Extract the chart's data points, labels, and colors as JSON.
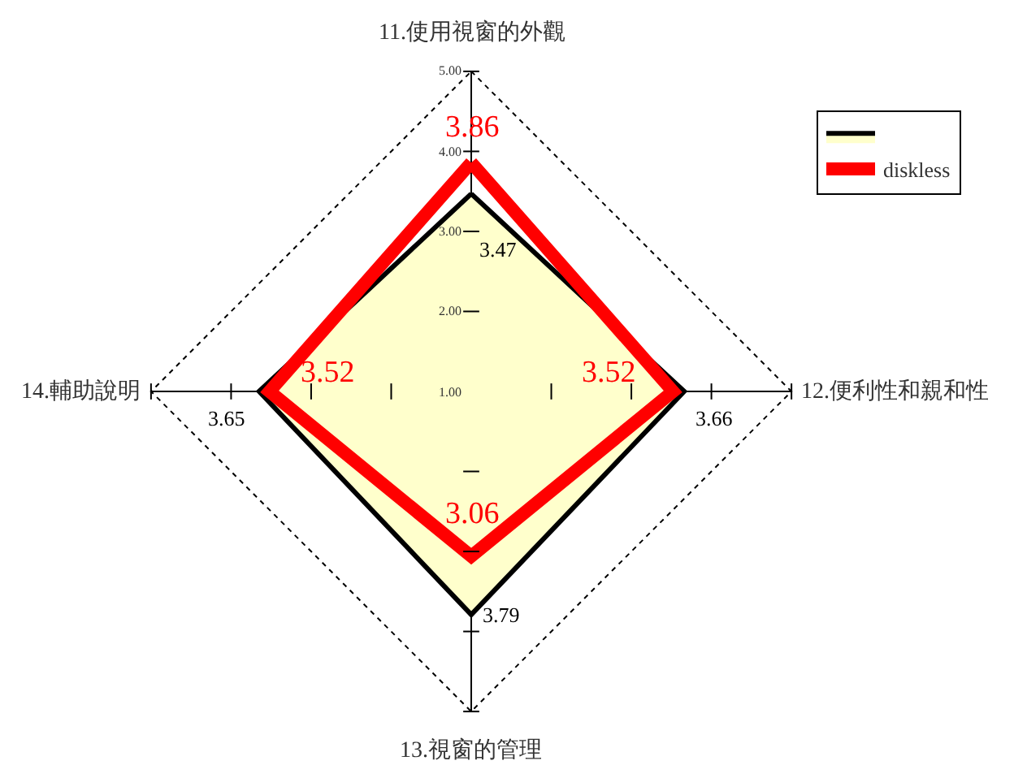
{
  "chart_data": {
    "type": "radar",
    "categories": [
      "11.使用視窗的外觀",
      "12.便利性和親和性",
      "13.視窗的管理",
      "14.輔助說明"
    ],
    "series": [
      {
        "color": "#000000",
        "values": [
          3.47,
          3.66,
          3.79,
          3.65
        ]
      },
      {
        "name": "diskless",
        "color": "#ff0000",
        "values": [
          3.86,
          3.52,
          3.06,
          3.52
        ]
      }
    ],
    "ylim": [
      1,
      5
    ],
    "yticks": [
      {
        "value": 1,
        "label": "1.00"
      },
      {
        "value": 2,
        "label": "2.00"
      },
      {
        "value": 3,
        "label": "3.00"
      },
      {
        "value": 4,
        "label": "4.00"
      },
      {
        "value": 5,
        "label": "5.00"
      }
    ],
    "data_labels": true,
    "grid": false,
    "legend": "top right",
    "marker": "none"
  }
}
